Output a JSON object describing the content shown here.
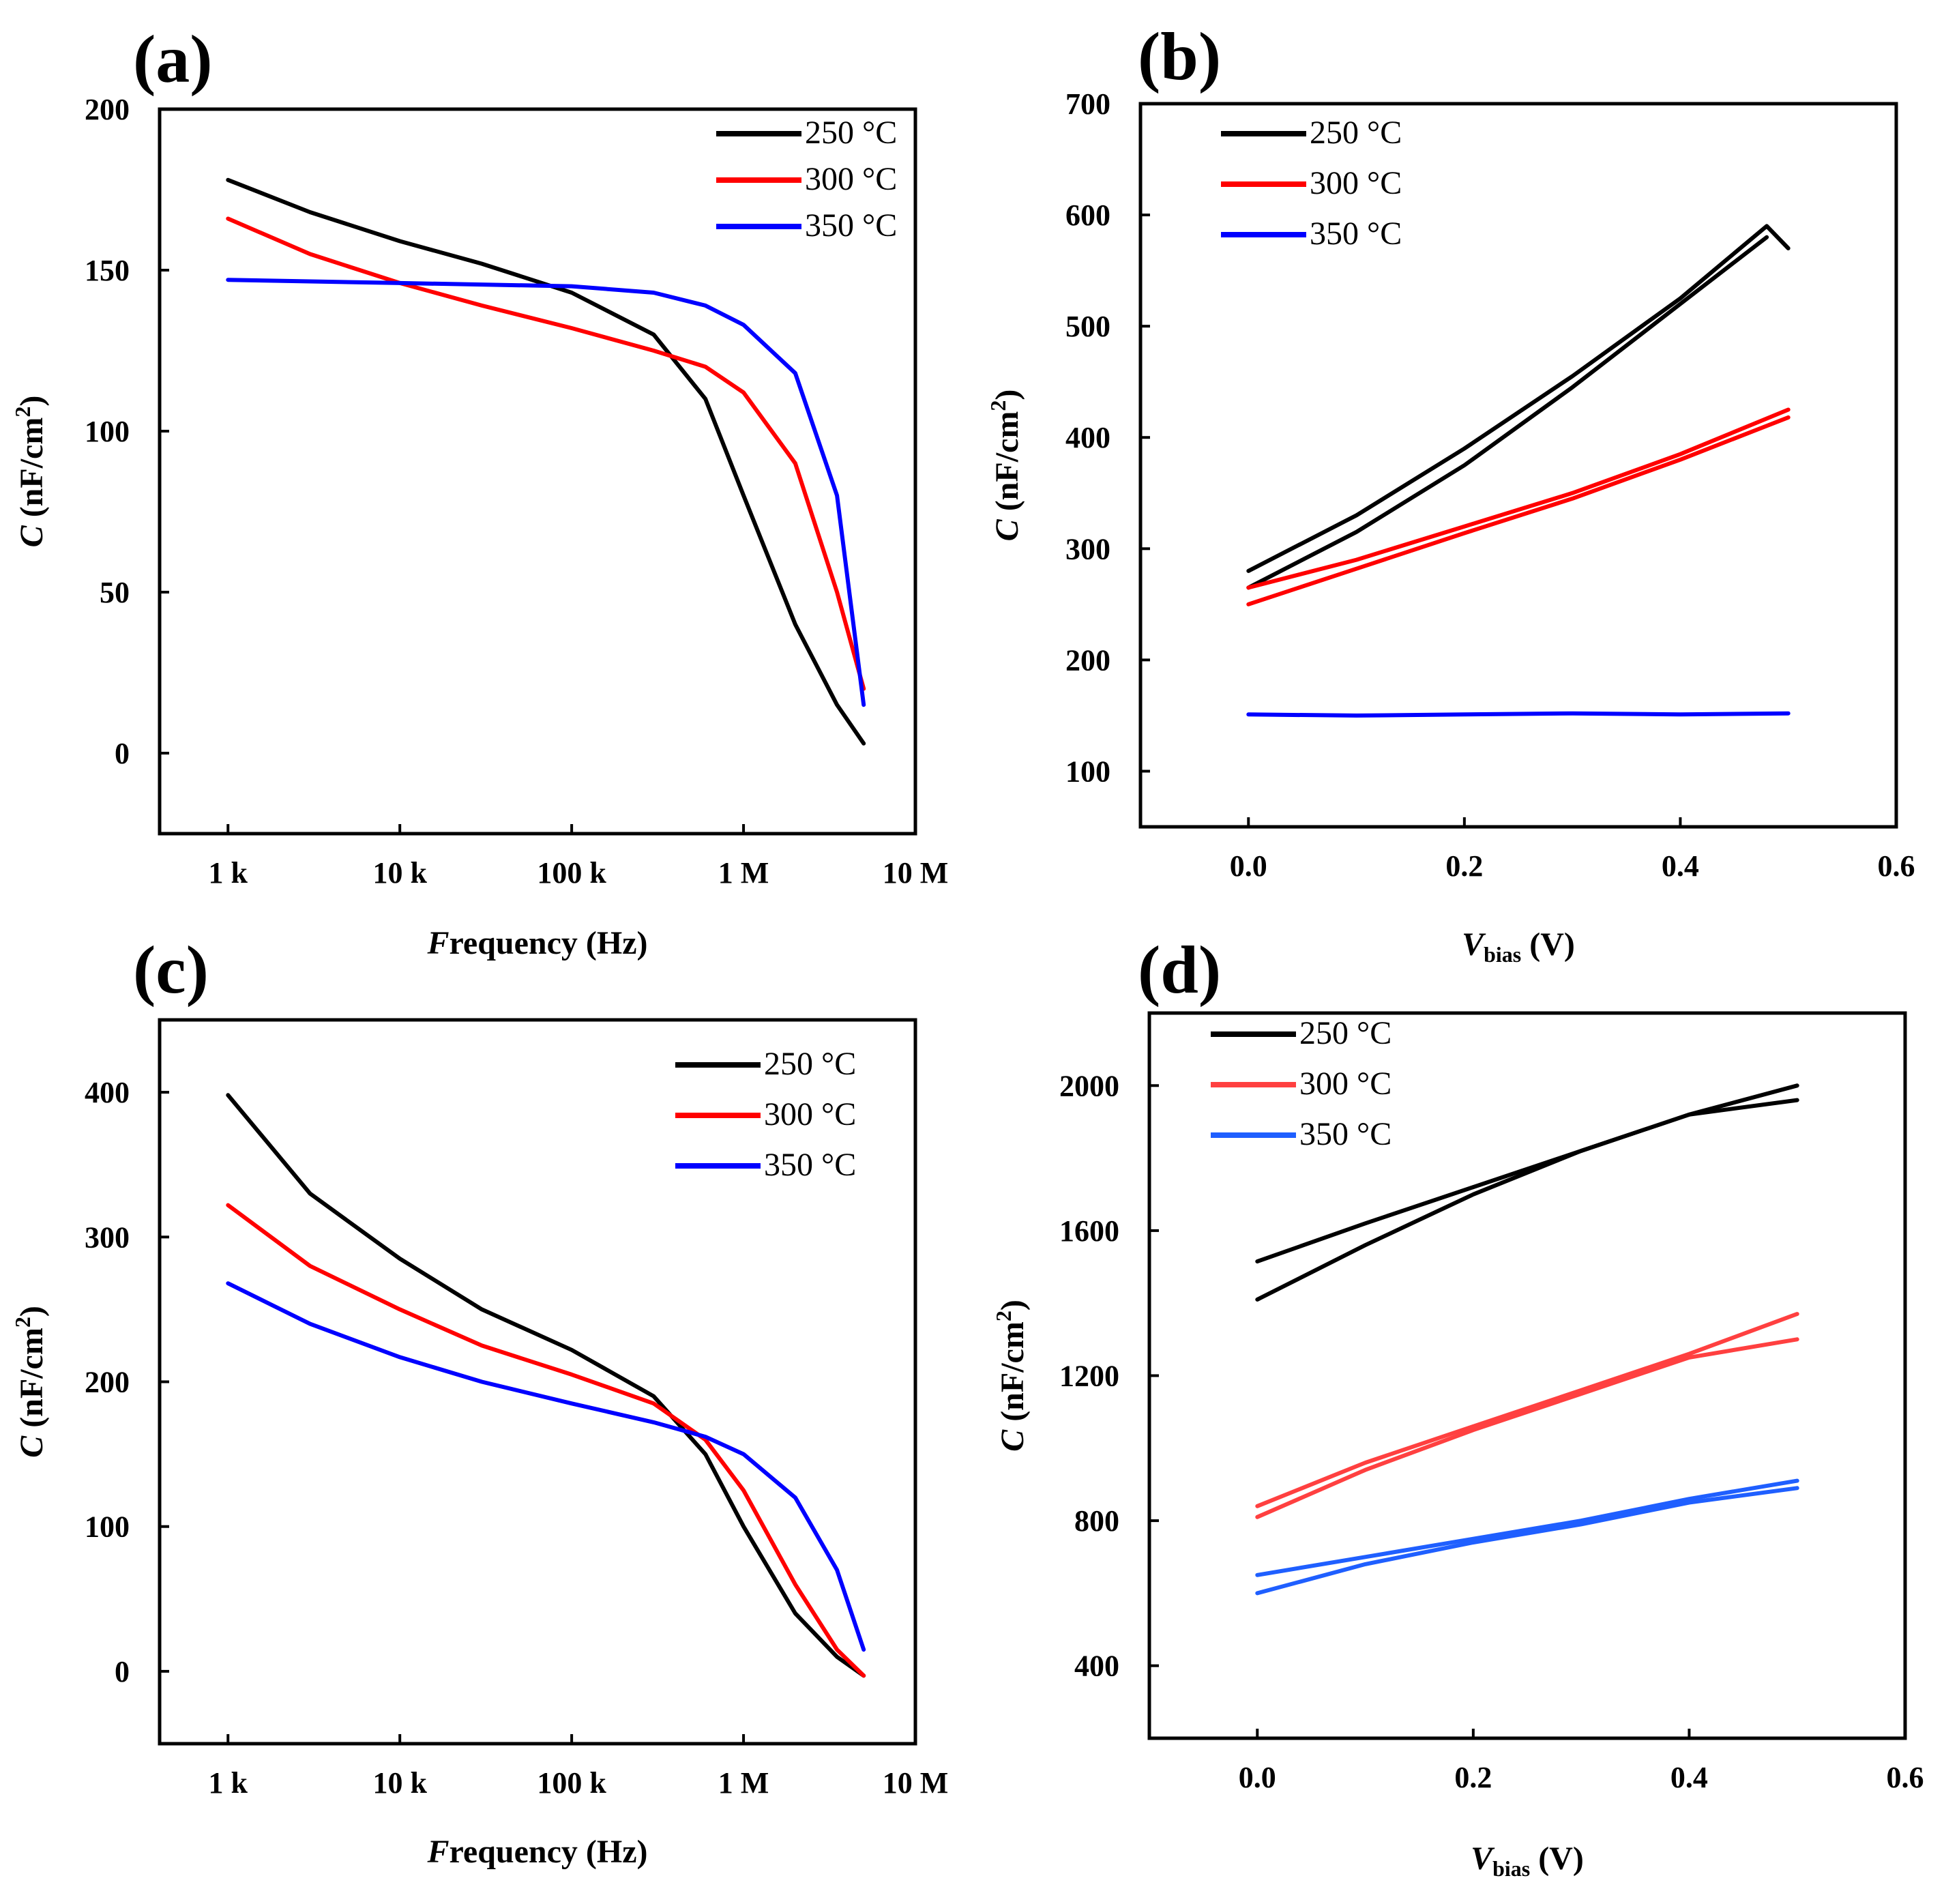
{
  "legend_title_unit": "°C",
  "colors": {
    "T250": "#000000",
    "T300": "#ff0000",
    "T350": "#0000ff",
    "T300_light": "#ff4040",
    "T350_light": "#1f5fff"
  },
  "chart_data": [
    {
      "panel": "(a)",
      "type": "line",
      "xscale": "log",
      "xlabel_italic": "F",
      "xlabel_rest": "requency (Hz)",
      "ylabel_italic": "C",
      "ylabel_rest": " (nF/cm",
      "ylabel_sup": "2",
      "ylabel_close": ")",
      "xlim": [
        400,
        10000000
      ],
      "ylim": [
        -25,
        200
      ],
      "xticks": [
        1000,
        10000,
        100000,
        1000000,
        10000000
      ],
      "xtick_labels": [
        "1 k",
        "10 k",
        "100 k",
        "1 M",
        "10 M"
      ],
      "yticks": [
        0,
        50,
        100,
        150,
        200
      ],
      "ytick_labels": [
        "0",
        "50",
        "100",
        "150",
        "200"
      ],
      "legend": [
        "250 °C",
        "300 °C",
        "350 °C"
      ],
      "series": [
        {
          "name": "250 °C",
          "color": "#000000",
          "x": [
            1000,
            3000,
            10000,
            30000,
            100000,
            300000,
            600000,
            1000000,
            2000000,
            3500000,
            5000000
          ],
          "y": [
            178,
            168,
            159,
            152,
            143,
            130,
            110,
            80,
            40,
            15,
            3
          ]
        },
        {
          "name": "300 °C",
          "color": "#ff0000",
          "x": [
            1000,
            3000,
            10000,
            30000,
            100000,
            300000,
            600000,
            1000000,
            2000000,
            3500000,
            5000000
          ],
          "y": [
            166,
            155,
            146,
            139,
            132,
            125,
            120,
            112,
            90,
            50,
            20
          ]
        },
        {
          "name": "350 °C",
          "color": "#0000ff",
          "x": [
            1000,
            10000,
            100000,
            300000,
            600000,
            1000000,
            2000000,
            3500000,
            5000000
          ],
          "y": [
            147,
            146,
            145,
            143,
            139,
            133,
            118,
            80,
            15
          ]
        }
      ]
    },
    {
      "panel": "(b)",
      "type": "line",
      "xscale": "linear",
      "xlabel_italic": "V",
      "xlabel_sub": "bias",
      "xlabel_rest": " (V)",
      "ylabel_italic": "C",
      "ylabel_rest": " (nF/cm",
      "ylabel_sup": "2",
      "ylabel_close": ")",
      "xlim": [
        -0.1,
        0.6
      ],
      "ylim": [
        50,
        700
      ],
      "xticks": [
        0.0,
        0.2,
        0.4,
        0.6
      ],
      "xtick_labels": [
        "0.0",
        "0.2",
        "0.4",
        "0.6"
      ],
      "yticks": [
        100,
        200,
        300,
        400,
        500,
        600,
        700
      ],
      "ytick_labels": [
        "100",
        "200",
        "300",
        "400",
        "500",
        "600",
        "700"
      ],
      "legend": [
        "250 °C",
        "300 °C",
        "350 °C"
      ],
      "series": [
        {
          "name": "250 °C",
          "color": "#000000",
          "x": [
            0.0,
            0.1,
            0.2,
            0.3,
            0.4,
            0.48,
            0.5
          ],
          "y": [
            280,
            330,
            390,
            455,
            525,
            590,
            570
          ]
        },
        {
          "name": "250 °C",
          "color": "#000000",
          "x": [
            0.0,
            0.1,
            0.2,
            0.3,
            0.4,
            0.48
          ],
          "y": [
            265,
            315,
            375,
            445,
            520,
            580
          ]
        },
        {
          "name": "300 °C",
          "color": "#ff0000",
          "x": [
            0.0,
            0.1,
            0.2,
            0.3,
            0.4,
            0.5
          ],
          "y": [
            265,
            290,
            320,
            350,
            385,
            425
          ]
        },
        {
          "name": "300 °C",
          "color": "#ff0000",
          "x": [
            0.0,
            0.1,
            0.2,
            0.3,
            0.4,
            0.5
          ],
          "y": [
            250,
            282,
            314,
            345,
            380,
            418
          ]
        },
        {
          "name": "350 °C",
          "color": "#0000ff",
          "x": [
            0.0,
            0.1,
            0.2,
            0.3,
            0.4,
            0.5
          ],
          "y": [
            151,
            150,
            151,
            152,
            151,
            152
          ]
        }
      ]
    },
    {
      "panel": "(c)",
      "type": "line",
      "xscale": "log",
      "xlabel_italic": "F",
      "xlabel_rest": "requency (Hz)",
      "ylabel_italic": "C",
      "ylabel_rest": " (nF/cm",
      "ylabel_sup": "2",
      "ylabel_close": ")",
      "xlim": [
        400,
        10000000
      ],
      "ylim": [
        -50,
        450
      ],
      "xticks": [
        1000,
        10000,
        100000,
        1000000,
        10000000
      ],
      "xtick_labels": [
        "1 k",
        "10 k",
        "100 k",
        "1 M",
        "10 M"
      ],
      "yticks": [
        0,
        100,
        200,
        300,
        400
      ],
      "ytick_labels": [
        "0",
        "100",
        "200",
        "300",
        "400"
      ],
      "legend": [
        "250 °C",
        "300 °C",
        "350 °C"
      ],
      "series": [
        {
          "name": "250 °C",
          "color": "#000000",
          "x": [
            1000,
            3000,
            10000,
            30000,
            100000,
            300000,
            600000,
            1000000,
            2000000,
            3500000,
            5000000
          ],
          "y": [
            398,
            330,
            285,
            250,
            222,
            190,
            150,
            100,
            40,
            10,
            -3
          ]
        },
        {
          "name": "300 °C",
          "color": "#ff0000",
          "x": [
            1000,
            3000,
            10000,
            30000,
            100000,
            300000,
            600000,
            1000000,
            2000000,
            3500000,
            5000000
          ],
          "y": [
            322,
            280,
            250,
            225,
            205,
            185,
            160,
            125,
            60,
            15,
            -3
          ]
        },
        {
          "name": "350 °C",
          "color": "#0000ff",
          "x": [
            1000,
            3000,
            10000,
            30000,
            100000,
            300000,
            600000,
            1000000,
            2000000,
            3500000,
            5000000
          ],
          "y": [
            268,
            240,
            217,
            200,
            185,
            172,
            162,
            150,
            120,
            70,
            15
          ]
        }
      ]
    },
    {
      "panel": "(d)",
      "type": "line",
      "xscale": "linear",
      "xlabel_italic": "V",
      "xlabel_sub": "bias",
      "xlabel_rest": " (V)",
      "ylabel_italic": "C",
      "ylabel_rest": " (nF/cm",
      "ylabel_sup": "2",
      "ylabel_close": ")",
      "xlim": [
        -0.1,
        0.6
      ],
      "ylim": [
        200,
        2200
      ],
      "xticks": [
        0.0,
        0.2,
        0.4,
        0.6
      ],
      "xtick_labels": [
        "0.0",
        "0.2",
        "0.4",
        "0.6"
      ],
      "yticks": [
        400,
        800,
        1200,
        1600,
        2000
      ],
      "ytick_labels": [
        "400",
        "800",
        "1200",
        "1600",
        "2000"
      ],
      "legend": [
        "250 °C",
        "300 °C",
        "350 °C"
      ],
      "series": [
        {
          "name": "250 °C",
          "color": "#000000",
          "x": [
            0.0,
            0.1,
            0.2,
            0.3,
            0.4,
            0.5
          ],
          "y": [
            1515,
            1620,
            1720,
            1820,
            1920,
            2000
          ]
        },
        {
          "name": "250 °C",
          "color": "#000000",
          "x": [
            0.0,
            0.1,
            0.2,
            0.3,
            0.4,
            0.5
          ],
          "y": [
            1410,
            1560,
            1700,
            1820,
            1920,
            1960
          ]
        },
        {
          "name": "300 °C",
          "color": "#ff4040",
          "x": [
            0.0,
            0.1,
            0.2,
            0.3,
            0.4,
            0.5
          ],
          "y": [
            840,
            960,
            1060,
            1160,
            1260,
            1370
          ]
        },
        {
          "name": "300 °C",
          "color": "#ff4040",
          "x": [
            0.0,
            0.1,
            0.2,
            0.3,
            0.4,
            0.5
          ],
          "y": [
            810,
            940,
            1050,
            1150,
            1250,
            1300
          ]
        },
        {
          "name": "350 °C",
          "color": "#1f5fff",
          "x": [
            0.0,
            0.1,
            0.2,
            0.3,
            0.4,
            0.5
          ],
          "y": [
            650,
            700,
            750,
            800,
            860,
            910
          ]
        },
        {
          "name": "350 °C",
          "color": "#1f5fff",
          "x": [
            0.0,
            0.1,
            0.2,
            0.3,
            0.4,
            0.5
          ],
          "y": [
            600,
            680,
            740,
            790,
            850,
            890
          ]
        }
      ]
    }
  ]
}
